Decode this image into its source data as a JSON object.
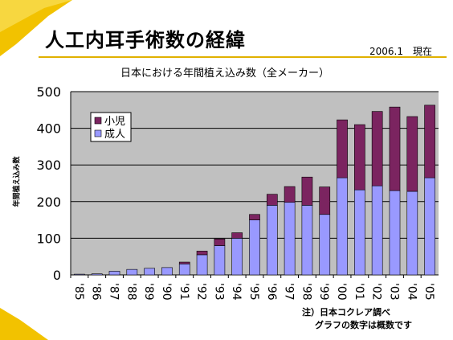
{
  "slide": {
    "title": "人工内耳手術数の経緯",
    "date_note": "2006.1　現在",
    "note_line1": "注）日本コクレア調べ",
    "note_line2": "グラフの数字は概数です"
  },
  "colors": {
    "accent_yellow": "#f2c200",
    "child": "#7b2460",
    "adult": "#9999ff",
    "plot_bg": "#c0c0c0"
  },
  "chart_data": {
    "type": "bar",
    "stacked": true,
    "title": "日本における年間植え込み数（全メーカー）",
    "ylabel": "年間植え込み数",
    "xlabel": "",
    "ylim": [
      0,
      500
    ],
    "yticks": [
      0,
      100,
      200,
      300,
      400,
      500
    ],
    "grid": true,
    "legend_position": "top-left",
    "categories": [
      "'85",
      "'86",
      "'87",
      "'88",
      "'89",
      "'90",
      "'91",
      "'92",
      "'93",
      "'94",
      "'95",
      "'96",
      "'97",
      "'98",
      "'99",
      "'00",
      "'01",
      "'02",
      "'03",
      "'04",
      "'05"
    ],
    "series": [
      {
        "name": "成人",
        "values": [
          2,
          3,
          10,
          15,
          18,
          20,
          30,
          55,
          80,
          100,
          150,
          190,
          198,
          190,
          165,
          265,
          232,
          243,
          230,
          228,
          265
        ]
      },
      {
        "name": "小児",
        "values": [
          0,
          0,
          0,
          0,
          0,
          0,
          5,
          10,
          18,
          15,
          15,
          30,
          43,
          77,
          75,
          158,
          178,
          203,
          228,
          204,
          198
        ]
      }
    ]
  }
}
